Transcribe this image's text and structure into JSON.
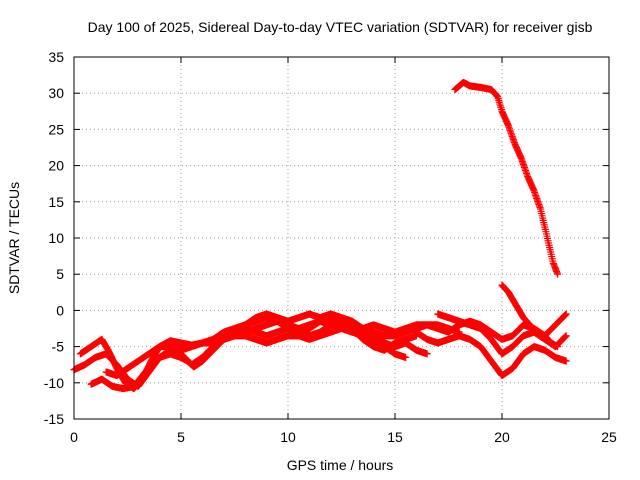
{
  "chart_data": {
    "type": "scatter",
    "title": "Day 100 of 2025, Sidereal Day-to-day VTEC variation (SDTVAR) for receiver gisb",
    "xlabel": "GPS time / hours",
    "ylabel": "SDTVAR / TECUs",
    "xlim": [
      0,
      25
    ],
    "ylim": [
      -15,
      35
    ],
    "x_ticks": [
      0,
      5,
      10,
      15,
      20,
      25
    ],
    "y_ticks": [
      -15,
      -10,
      -5,
      0,
      5,
      10,
      15,
      20,
      25,
      30,
      35
    ],
    "grid": true,
    "marker": "plus",
    "color": "#ff0000",
    "series": [
      {
        "name": "track-1",
        "points": [
          [
            0.0,
            -8.2
          ],
          [
            0.5,
            -7.5
          ],
          [
            1.0,
            -6.5
          ],
          [
            1.5,
            -6.0
          ],
          [
            2.0,
            -7.5
          ],
          [
            2.5,
            -9.5
          ],
          [
            3.0,
            -10.5
          ],
          [
            3.5,
            -8.5
          ],
          [
            4.0,
            -6.5
          ],
          [
            4.5,
            -5.5
          ],
          [
            5.0,
            -6.0
          ],
          [
            5.5,
            -7.5
          ],
          [
            6.0,
            -6.5
          ],
          [
            6.5,
            -5.0
          ],
          [
            7.0,
            -4.0
          ],
          [
            7.5,
            -3.5
          ],
          [
            8.0,
            -3.0
          ],
          [
            8.5,
            -2.5
          ],
          [
            9.0,
            -2.0
          ],
          [
            9.5,
            -1.5
          ],
          [
            10.0,
            -2.0
          ],
          [
            10.5,
            -2.5
          ],
          [
            11.0,
            -2.0
          ],
          [
            11.5,
            -1.5
          ],
          [
            12.0,
            -2.0
          ],
          [
            12.5,
            -2.5
          ],
          [
            13.0,
            -3.0
          ],
          [
            13.5,
            -3.5
          ],
          [
            14.0,
            -4.0
          ],
          [
            14.5,
            -5.0
          ],
          [
            15.0,
            -6.0
          ],
          [
            15.5,
            -6.5
          ]
        ]
      },
      {
        "name": "track-2",
        "points": [
          [
            0.3,
            -6.0
          ],
          [
            0.8,
            -5.0
          ],
          [
            1.3,
            -4.0
          ],
          [
            1.6,
            -5.5
          ],
          [
            2.0,
            -8.0
          ],
          [
            2.4,
            -10.0
          ],
          [
            2.8,
            -10.8
          ],
          [
            3.2,
            -9.5
          ],
          [
            3.6,
            -7.0
          ],
          [
            4.0,
            -5.0
          ],
          [
            4.5,
            -4.2
          ],
          [
            5.0,
            -4.5
          ],
          [
            5.5,
            -4.8
          ],
          [
            6.0,
            -4.5
          ],
          [
            6.5,
            -4.0
          ],
          [
            7.0,
            -3.0
          ],
          [
            7.5,
            -2.5
          ],
          [
            8.0,
            -2.0
          ],
          [
            8.5,
            -1.5
          ],
          [
            9.0,
            -1.0
          ],
          [
            9.5,
            -1.5
          ],
          [
            10.0,
            -2.5
          ],
          [
            10.5,
            -3.0
          ],
          [
            11.0,
            -2.5
          ],
          [
            11.5,
            -1.5
          ],
          [
            12.0,
            -1.0
          ],
          [
            12.5,
            -1.5
          ],
          [
            13.0,
            -2.5
          ],
          [
            13.5,
            -3.0
          ],
          [
            14.0,
            -3.5
          ],
          [
            14.5,
            -4.5
          ],
          [
            15.0,
            -5.0
          ],
          [
            15.5,
            -4.5
          ],
          [
            16.0,
            -5.5
          ],
          [
            16.5,
            -6.0
          ]
        ]
      },
      {
        "name": "track-3",
        "points": [
          [
            0.8,
            -10.2
          ],
          [
            1.3,
            -9.5
          ],
          [
            1.8,
            -10.5
          ],
          [
            2.3,
            -10.8
          ],
          [
            2.8,
            -10.5
          ],
          [
            3.2,
            -9.0
          ],
          [
            3.6,
            -7.5
          ],
          [
            4.0,
            -6.5
          ],
          [
            4.5,
            -6.0
          ],
          [
            5.0,
            -6.5
          ],
          [
            5.3,
            -7.0
          ],
          [
            5.6,
            -7.8
          ],
          [
            6.0,
            -7.0
          ],
          [
            6.5,
            -5.5
          ],
          [
            7.0,
            -4.0
          ],
          [
            7.5,
            -3.0
          ],
          [
            8.0,
            -2.5
          ],
          [
            8.5,
            -3.0
          ],
          [
            9.0,
            -3.5
          ],
          [
            9.5,
            -3.0
          ],
          [
            10.0,
            -2.5
          ],
          [
            10.5,
            -3.0
          ],
          [
            11.0,
            -3.5
          ],
          [
            11.5,
            -3.0
          ],
          [
            12.0,
            -2.0
          ],
          [
            12.5,
            -1.5
          ],
          [
            13.0,
            -2.5
          ],
          [
            13.5,
            -4.0
          ],
          [
            14.0,
            -5.0
          ],
          [
            14.5,
            -5.5
          ],
          [
            15.0,
            -4.5
          ],
          [
            15.5,
            -4.0
          ],
          [
            16.0,
            -3.5
          ]
        ]
      },
      {
        "name": "track-4",
        "points": [
          [
            1.5,
            -8.5
          ],
          [
            2.0,
            -9.0
          ],
          [
            2.5,
            -8.0
          ],
          [
            3.0,
            -7.0
          ],
          [
            3.5,
            -6.0
          ],
          [
            4.0,
            -5.0
          ],
          [
            4.5,
            -5.0
          ],
          [
            5.0,
            -5.5
          ],
          [
            5.5,
            -5.0
          ],
          [
            6.0,
            -4.5
          ],
          [
            6.5,
            -4.5
          ],
          [
            7.0,
            -4.0
          ],
          [
            7.5,
            -3.5
          ],
          [
            8.0,
            -3.5
          ],
          [
            8.5,
            -4.0
          ],
          [
            9.0,
            -4.5
          ],
          [
            9.5,
            -4.0
          ],
          [
            10.0,
            -3.5
          ],
          [
            10.5,
            -3.5
          ],
          [
            11.0,
            -4.0
          ],
          [
            11.5,
            -3.5
          ],
          [
            12.0,
            -3.0
          ],
          [
            12.5,
            -2.5
          ],
          [
            13.0,
            -2.0
          ],
          [
            13.5,
            -2.5
          ],
          [
            14.0,
            -3.0
          ],
          [
            14.5,
            -3.5
          ],
          [
            15.0,
            -3.5
          ],
          [
            15.5,
            -3.0
          ],
          [
            16.0,
            -2.5
          ],
          [
            16.5,
            -2.0
          ],
          [
            17.0,
            -2.0
          ],
          [
            17.5,
            -2.5
          ],
          [
            18.0,
            -3.0
          ]
        ]
      },
      {
        "name": "track-5",
        "points": [
          [
            8.0,
            -2.0
          ],
          [
            8.5,
            -1.0
          ],
          [
            9.0,
            -0.5
          ],
          [
            9.5,
            -1.0
          ],
          [
            10.0,
            -1.5
          ],
          [
            10.5,
            -1.0
          ],
          [
            11.0,
            -0.5
          ],
          [
            11.5,
            -1.0
          ],
          [
            12.0,
            -0.5
          ],
          [
            12.5,
            -1.0
          ],
          [
            13.0,
            -1.5
          ],
          [
            13.5,
            -2.5
          ],
          [
            14.0,
            -2.0
          ],
          [
            14.5,
            -2.5
          ],
          [
            15.0,
            -3.0
          ],
          [
            15.5,
            -2.5
          ],
          [
            16.0,
            -2.0
          ],
          [
            16.5,
            -2.0
          ],
          [
            17.0,
            -2.5
          ],
          [
            17.5,
            -3.0
          ],
          [
            18.0,
            -2.0
          ],
          [
            18.5,
            -1.5
          ],
          [
            19.0,
            -2.0
          ],
          [
            19.5,
            -3.0
          ],
          [
            20.0,
            -4.0
          ],
          [
            20.5,
            -3.5
          ],
          [
            21.0,
            -2.0
          ],
          [
            21.5,
            -2.5
          ],
          [
            22.0,
            -3.5
          ],
          [
            22.5,
            -2.0
          ],
          [
            23.0,
            -0.5
          ]
        ]
      },
      {
        "name": "track-6",
        "points": [
          [
            16.0,
            -3.0
          ],
          [
            16.5,
            -4.0
          ],
          [
            17.0,
            -4.5
          ],
          [
            17.5,
            -4.0
          ],
          [
            18.0,
            -3.5
          ],
          [
            18.5,
            -4.0
          ],
          [
            19.0,
            -5.0
          ],
          [
            19.5,
            -7.0
          ],
          [
            20.0,
            -9.0
          ],
          [
            20.5,
            -8.0
          ],
          [
            21.0,
            -6.0
          ],
          [
            21.5,
            -5.0
          ],
          [
            22.0,
            -5.5
          ],
          [
            22.5,
            -6.5
          ],
          [
            23.0,
            -7.0
          ]
        ]
      },
      {
        "name": "track-7",
        "points": [
          [
            17.0,
            -0.5
          ],
          [
            17.5,
            -1.0
          ],
          [
            18.0,
            -1.5
          ],
          [
            18.5,
            -2.0
          ],
          [
            19.0,
            -2.5
          ],
          [
            19.5,
            -4.0
          ],
          [
            20.0,
            -6.0
          ],
          [
            20.5,
            -5.0
          ],
          [
            21.0,
            -3.5
          ],
          [
            21.5,
            -3.0
          ],
          [
            22.0,
            -4.0
          ],
          [
            22.5,
            -5.0
          ],
          [
            23.0,
            -3.5
          ]
        ]
      },
      {
        "name": "track-8",
        "points": [
          [
            20.0,
            3.5
          ],
          [
            20.3,
            2.5
          ],
          [
            20.6,
            1.0
          ],
          [
            21.0,
            -1.0
          ],
          [
            21.3,
            -2.0
          ],
          [
            21.6,
            -3.0
          ],
          [
            22.0,
            -3.5
          ],
          [
            22.3,
            -4.5
          ],
          [
            22.6,
            -5.0
          ]
        ]
      },
      {
        "name": "track-9",
        "points": [
          [
            17.8,
            30.5
          ],
          [
            18.0,
            31.0
          ],
          [
            18.2,
            31.5
          ],
          [
            18.5,
            31.0
          ],
          [
            19.0,
            30.8
          ],
          [
            19.5,
            30.5
          ],
          [
            19.8,
            29.5
          ],
          [
            20.0,
            27.5
          ],
          [
            20.3,
            25.5
          ],
          [
            20.6,
            23.0
          ],
          [
            20.9,
            21.0
          ],
          [
            21.2,
            18.5
          ],
          [
            21.5,
            16.5
          ],
          [
            21.8,
            14.0
          ],
          [
            22.0,
            11.5
          ],
          [
            22.2,
            9.0
          ],
          [
            22.4,
            6.5
          ],
          [
            22.6,
            5.0
          ]
        ]
      }
    ]
  }
}
